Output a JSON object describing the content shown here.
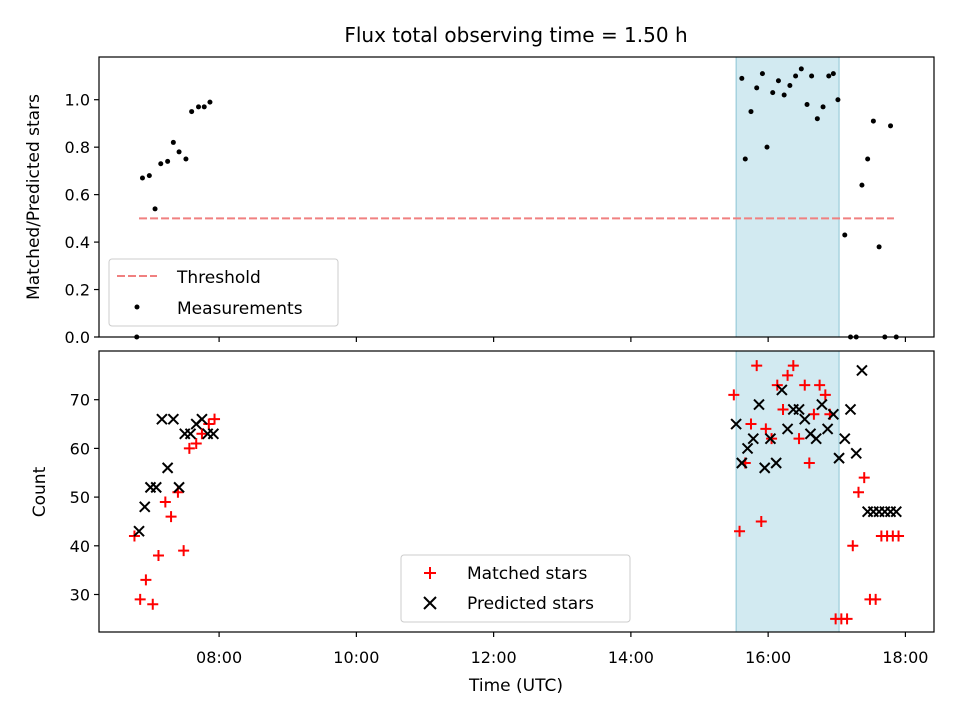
{
  "title": "Flux total observing time = 1.50 h",
  "xlabel": "Time (UTC)",
  "x_ticks": [
    "08:00",
    "10:00",
    "12:00",
    "14:00",
    "16:00",
    "18:00"
  ],
  "chart_data": [
    {
      "type": "scatter",
      "ylabel": "Matched/Predicted stars",
      "ylim": [
        0,
        1.18
      ],
      "xlim": [
        "06:15",
        "18:25"
      ],
      "y_ticks": [
        "0.0",
        "0.2",
        "0.4",
        "0.6",
        "0.8",
        "1.0"
      ],
      "shaded_region": {
        "x": [
          "15:32",
          "17:02"
        ],
        "color": "#add8e6"
      },
      "threshold": {
        "label": "Threshold",
        "y": 0.5,
        "x": [
          "06:50",
          "17:50"
        ],
        "color": "#f08080"
      },
      "legend": {
        "placement": "lower-left",
        "entries": [
          "Threshold",
          "Measurements"
        ]
      },
      "series": [
        {
          "name": "Measurements",
          "color": "#000000",
          "x": [
            "06:48",
            "06:53",
            "06:59",
            "07:04",
            "07:09",
            "07:15",
            "07:20",
            "07:25",
            "07:31",
            "07:36",
            "07:42",
            "07:47",
            "07:52",
            "15:37",
            "15:40",
            "15:45",
            "15:50",
            "15:55",
            "15:59",
            "16:04",
            "16:09",
            "16:14",
            "16:19",
            "16:24",
            "16:29",
            "16:34",
            "16:38",
            "16:43",
            "16:48",
            "16:53",
            "16:57",
            "17:01",
            "17:07",
            "17:12",
            "17:17",
            "17:22",
            "17:27",
            "17:32",
            "17:37",
            "17:42",
            "17:47",
            "17:52"
          ],
          "y": [
            0.0,
            0.67,
            0.68,
            0.54,
            0.73,
            0.74,
            0.82,
            0.78,
            0.75,
            0.95,
            0.97,
            0.97,
            0.99,
            1.09,
            0.75,
            0.95,
            1.05,
            1.11,
            0.8,
            1.03,
            1.08,
            1.02,
            1.06,
            1.1,
            1.13,
            0.98,
            1.1,
            0.92,
            0.97,
            1.1,
            1.11,
            1.0,
            0.43,
            0.0,
            0.0,
            0.64,
            0.75,
            0.91,
            0.38,
            0.0,
            0.89,
            0.0
          ]
        }
      ]
    },
    {
      "type": "scatter",
      "ylabel": "Count",
      "ylim": [
        22.3,
        80
      ],
      "xlim": [
        "06:15",
        "18:25"
      ],
      "y_ticks": [
        "30",
        "40",
        "50",
        "60",
        "70"
      ],
      "shaded_region": {
        "x": [
          "15:32",
          "17:02"
        ],
        "color": "#add8e6"
      },
      "legend": {
        "placement": "lower-center",
        "entries": [
          "Matched stars",
          "Predicted stars"
        ]
      },
      "series": [
        {
          "name": "Matched stars",
          "marker": "+",
          "color": "#ff0000",
          "x": [
            "06:46",
            "06:51",
            "06:56",
            "07:02",
            "07:07",
            "07:13",
            "07:18",
            "07:24",
            "07:29",
            "07:34",
            "07:40",
            "07:45",
            "07:51",
            "07:56",
            "15:30",
            "15:35",
            "15:40",
            "15:45",
            "15:50",
            "15:54",
            "15:58",
            "16:03",
            "16:08",
            "16:13",
            "16:17",
            "16:22",
            "16:27",
            "16:32",
            "16:36",
            "16:40",
            "16:45",
            "16:50",
            "16:54",
            "16:59",
            "17:04",
            "17:09",
            "17:14",
            "17:19",
            "17:24",
            "17:29",
            "17:34",
            "17:39",
            "17:44",
            "17:49",
            "17:54"
          ],
          "y": [
            42,
            29,
            33,
            28,
            38,
            49,
            46,
            51,
            39,
            60,
            61,
            63,
            65,
            66,
            71,
            43,
            57,
            65,
            77,
            45,
            64,
            62,
            73,
            68,
            75,
            77,
            62,
            73,
            57,
            67,
            73,
            71,
            67,
            25,
            25,
            25,
            40,
            51,
            54,
            29,
            29,
            42,
            42,
            42,
            42
          ]
        },
        {
          "name": "Predicted stars",
          "marker": "x",
          "color": "#000000",
          "x": [
            "06:50",
            "06:55",
            "07:00",
            "07:05",
            "07:10",
            "07:15",
            "07:20",
            "07:25",
            "07:30",
            "07:35",
            "07:40",
            "07:45",
            "07:50",
            "07:55",
            "15:32",
            "15:37",
            "15:42",
            "15:47",
            "15:52",
            "15:57",
            "16:02",
            "16:07",
            "16:12",
            "16:17",
            "16:22",
            "16:27",
            "16:32",
            "16:37",
            "16:42",
            "16:47",
            "16:52",
            "16:57",
            "17:02",
            "17:07",
            "17:12",
            "17:17",
            "17:22",
            "17:27",
            "17:32",
            "17:37",
            "17:42",
            "17:47",
            "17:52"
          ],
          "y": [
            43,
            48,
            52,
            52,
            66,
            56,
            66,
            52,
            63,
            63,
            65,
            66,
            63,
            63,
            65,
            57,
            60,
            62,
            69,
            56,
            62,
            57,
            72,
            64,
            68,
            68,
            66,
            63,
            62,
            69,
            64,
            67,
            58,
            62,
            68,
            59,
            76,
            47,
            47,
            47,
            47,
            47,
            47
          ]
        }
      ]
    }
  ]
}
